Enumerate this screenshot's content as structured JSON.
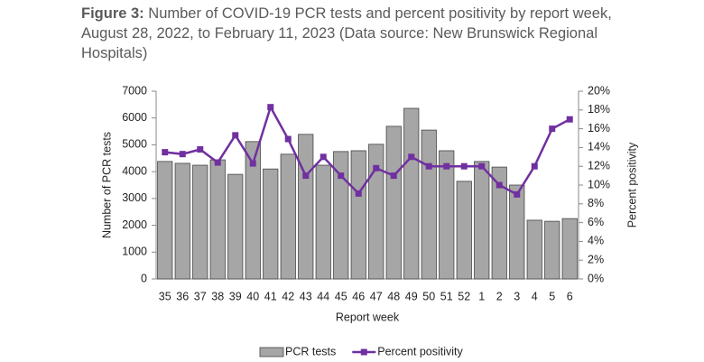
{
  "chart_data": {
    "type": "bar-line",
    "title_label": "Figure 3:",
    "title": "Number of COVID-19 PCR tests and percent positivity by report week, August 28, 2022, to February 11, 2023 (Data source: New Brunswick Regional Hospitals)",
    "x_label": "Report week",
    "y_label": "Number of PCR tests",
    "y2_label": "Percent positivity",
    "categories": [
      "35",
      "36",
      "37",
      "38",
      "39",
      "40",
      "41",
      "42",
      "43",
      "44",
      "45",
      "46",
      "47",
      "48",
      "49",
      "50",
      "51",
      "52",
      "1",
      "2",
      "3",
      "4",
      "5",
      "6"
    ],
    "series": [
      {
        "name": "PCR tests",
        "type": "bar",
        "color": "#a6a6a6",
        "values": [
          4380,
          4310,
          4240,
          4440,
          3900,
          5120,
          4100,
          4650,
          5390,
          4240,
          4750,
          4780,
          5020,
          5690,
          6360,
          5550,
          4780,
          3640,
          4380,
          4170,
          3500,
          2190,
          2150,
          2250
        ]
      },
      {
        "name": "Percent positivity",
        "type": "line",
        "axis": "y2",
        "color": "#7030a0",
        "values": [
          13.5,
          13.3,
          13.8,
          12.4,
          15.3,
          12.3,
          18.3,
          14.9,
          11.0,
          13.0,
          11.0,
          9.1,
          11.8,
          11.0,
          13.0,
          12.0,
          12.0,
          12.0,
          12.0,
          10.0,
          9.0,
          12.0,
          16.0,
          17.0
        ]
      }
    ],
    "ylim": [
      0,
      7000
    ],
    "yticks": [
      0,
      1000,
      2000,
      3000,
      4000,
      5000,
      6000,
      7000
    ],
    "y2lim": [
      0,
      20
    ],
    "y2ticks": [
      {
        "value": 0,
        "label": "0%"
      },
      {
        "value": 2,
        "label": "2%"
      },
      {
        "value": 4,
        "label": "4%"
      },
      {
        "value": 6,
        "label": "6%"
      },
      {
        "value": 8,
        "label": "8%"
      },
      {
        "value": 10,
        "label": "10%"
      },
      {
        "value": 12,
        "label": "12%"
      },
      {
        "value": 14,
        "label": "14%"
      },
      {
        "value": 16,
        "label": "16%"
      },
      {
        "value": 18,
        "label": "18%"
      },
      {
        "value": 20,
        "label": "20%"
      }
    ],
    "legend": "bottom"
  }
}
